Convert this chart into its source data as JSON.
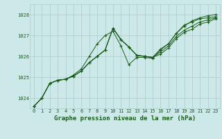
{
  "bg_color": "#cce8e8",
  "grid_color": "#aacccc",
  "line_color": "#1a5c1a",
  "marker_color": "#1a5c1a",
  "xlabel": "Graphe pression niveau de la mer (hPa)",
  "ylabel_ticks": [
    1024,
    1025,
    1026,
    1027,
    1028
  ],
  "xtick_labels": [
    "0",
    "1",
    "2",
    "3",
    "4",
    "5",
    "6",
    "7",
    "8",
    "9",
    "10",
    "11",
    "12",
    "13",
    "14",
    "15",
    "16",
    "17",
    "18",
    "19",
    "20",
    "21",
    "22",
    "23"
  ],
  "ylim": [
    1023.5,
    1028.5
  ],
  "xlim": [
    -0.5,
    23.5
  ],
  "series": [
    [
      1023.6,
      1024.0,
      1024.7,
      1024.85,
      1024.9,
      1025.05,
      1025.3,
      1025.7,
      1026.0,
      1026.3,
      1027.35,
      1026.8,
      1026.45,
      1026.05,
      1026.0,
      1025.95,
      1026.35,
      1026.6,
      1027.1,
      1027.5,
      1027.65,
      1027.8,
      1027.85,
      1027.9
    ],
    [
      1023.6,
      1024.0,
      1024.7,
      1024.85,
      1024.9,
      1025.05,
      1025.3,
      1025.7,
      1026.0,
      1026.3,
      1027.35,
      1026.8,
      1026.45,
      1026.05,
      1026.0,
      1025.95,
      1026.2,
      1026.5,
      1026.95,
      1027.25,
      1027.45,
      1027.65,
      1027.75,
      1027.85
    ],
    [
      1023.6,
      1024.0,
      1024.7,
      1024.85,
      1024.9,
      1025.05,
      1025.3,
      1025.7,
      1026.0,
      1026.3,
      1027.35,
      1026.8,
      1026.45,
      1026.05,
      1026.0,
      1025.95,
      1026.1,
      1026.4,
      1026.85,
      1027.15,
      1027.3,
      1027.55,
      1027.65,
      1027.8
    ],
    [
      1023.6,
      1024.0,
      1024.7,
      1024.85,
      1024.9,
      1025.1,
      1025.4,
      1026.0,
      1026.6,
      1027.0,
      1027.2,
      1026.5,
      1025.6,
      1025.95,
      1025.95,
      1025.9,
      1026.3,
      1026.6,
      1027.1,
      1027.45,
      1027.7,
      1027.85,
      1027.95,
      1028.0
    ]
  ],
  "tick_fontsize": 5.0,
  "xlabel_fontsize": 6.5
}
